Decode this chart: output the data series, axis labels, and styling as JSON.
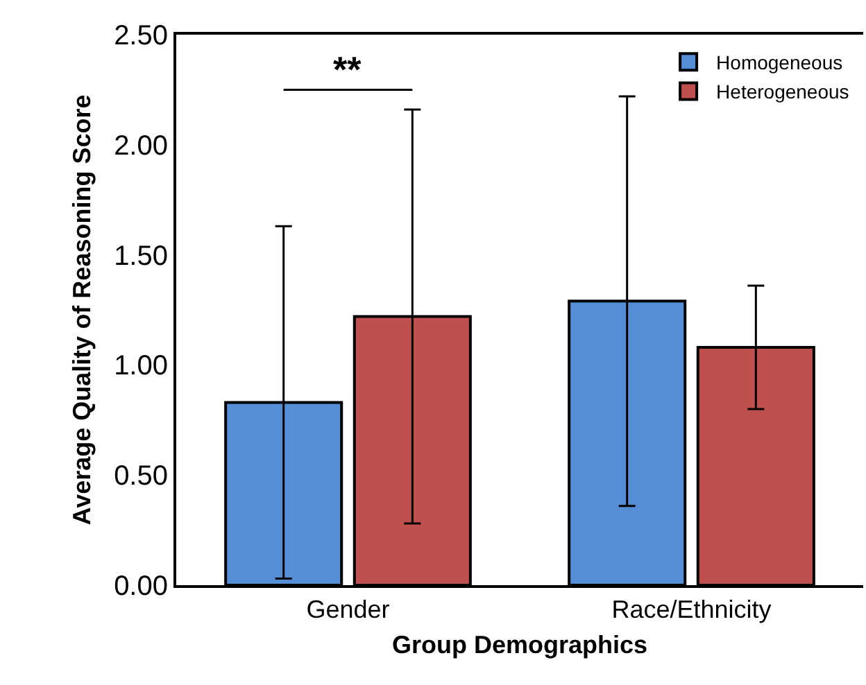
{
  "chart_data": {
    "type": "bar",
    "xlabel": "Group Demographics",
    "ylabel": "Average Quality of Reasoning Score",
    "categories": [
      "Gender",
      "Race/Ethnicity"
    ],
    "series": [
      {
        "name": "Homogeneous",
        "color": "#558ed5",
        "values": [
          0.83,
          1.29
        ],
        "errors": [
          0.8,
          0.93
        ]
      },
      {
        "name": "Heterogeneous",
        "color": "#c0504d",
        "values": [
          1.22,
          1.08
        ],
        "errors": [
          0.94,
          0.28
        ]
      }
    ],
    "ylim": [
      0,
      2.5
    ],
    "yticks": [
      {
        "value": 0,
        "label": "0.00"
      },
      {
        "value": 0.5,
        "label": "0.50"
      },
      {
        "value": 1,
        "label": "1.00"
      },
      {
        "value": 1.5,
        "label": "1.50"
      },
      {
        "value": 2,
        "label": "2.00"
      },
      {
        "value": 2.5,
        "label": "2.50"
      }
    ],
    "annotations": [
      "**"
    ],
    "legend": "top right",
    "grid": false
  }
}
